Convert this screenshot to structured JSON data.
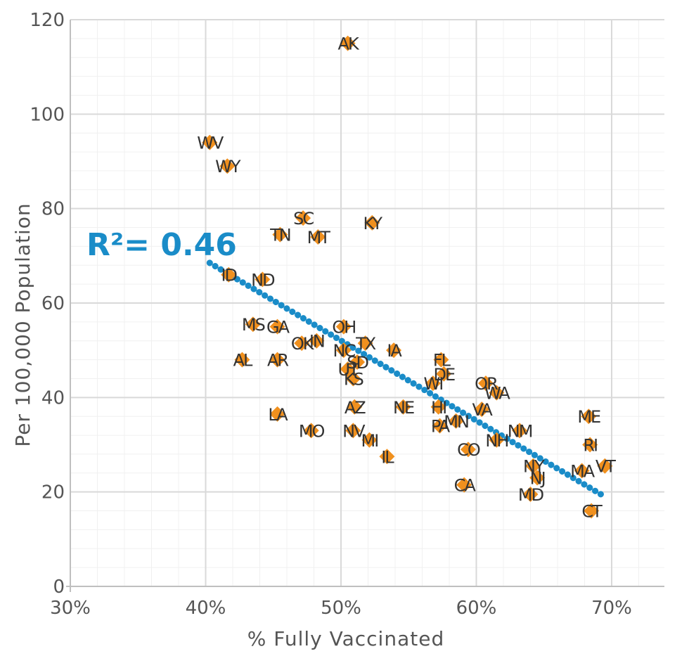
{
  "chart_data": {
    "type": "scatter",
    "xlabel": "% Fully Vaccinated",
    "ylabel": "Per 100,000 Population",
    "xlim": [
      30,
      72
    ],
    "ylim": [
      0,
      120
    ],
    "x_ticks": [
      30,
      40,
      50,
      60,
      70
    ],
    "x_tick_labels": [
      "30%",
      "40%",
      "50%",
      "60%",
      "70%"
    ],
    "y_ticks": [
      0,
      20,
      40,
      60,
      80,
      100,
      120
    ],
    "y_tick_labels": [
      "0",
      "20",
      "40",
      "60",
      "80",
      "100",
      "120"
    ],
    "grid": true,
    "annotation": "R²= 0.46",
    "trendline": {
      "x": [
        40.3,
        69.5
      ],
      "y": [
        68.5,
        19.0
      ]
    },
    "points": [
      {
        "label": "AK",
        "x": 50.5,
        "y": 115
      },
      {
        "label": "WV",
        "x": 40.3,
        "y": 94
      },
      {
        "label": "WY",
        "x": 41.6,
        "y": 89
      },
      {
        "label": "SC",
        "x": 47.2,
        "y": 78
      },
      {
        "label": "KY",
        "x": 52.3,
        "y": 77
      },
      {
        "label": "TN",
        "x": 45.5,
        "y": 74.5
      },
      {
        "label": "MT",
        "x": 48.3,
        "y": 74
      },
      {
        "label": "ID",
        "x": 41.7,
        "y": 66
      },
      {
        "label": "ND",
        "x": 44.2,
        "y": 65
      },
      {
        "label": "OH",
        "x": 50.2,
        "y": 55
      },
      {
        "label": "MS",
        "x": 43.5,
        "y": 55.5
      },
      {
        "label": "GA",
        "x": 45.3,
        "y": 55
      },
      {
        "label": "IN",
        "x": 48.2,
        "y": 52
      },
      {
        "label": "TX",
        "x": 51.8,
        "y": 51.5
      },
      {
        "label": "OK",
        "x": 47.1,
        "y": 51.5
      },
      {
        "label": "NC",
        "x": 50.2,
        "y": 50
      },
      {
        "label": "IA",
        "x": 53.9,
        "y": 50
      },
      {
        "label": "FL",
        "x": 57.4,
        "y": 48
      },
      {
        "label": "AL",
        "x": 42.7,
        "y": 48
      },
      {
        "label": "AR",
        "x": 45.3,
        "y": 48
      },
      {
        "label": "SD",
        "x": 51.2,
        "y": 47.5
      },
      {
        "label": "UT",
        "x": 50.5,
        "y": 46
      },
      {
        "label": "DE",
        "x": 57.6,
        "y": 45
      },
      {
        "label": "WI",
        "x": 56.8,
        "y": 43
      },
      {
        "label": "OR",
        "x": 60.7,
        "y": 43
      },
      {
        "label": "KS",
        "x": 50.9,
        "y": 44
      },
      {
        "label": "WA",
        "x": 61.5,
        "y": 41
      },
      {
        "label": "VA",
        "x": 60.4,
        "y": 37.5
      },
      {
        "label": "HI",
        "x": 57.2,
        "y": 38
      },
      {
        "label": "NE",
        "x": 54.6,
        "y": 38
      },
      {
        "label": "AZ",
        "x": 51.0,
        "y": 38
      },
      {
        "label": "LA",
        "x": 45.3,
        "y": 36.5
      },
      {
        "label": "ME",
        "x": 68.3,
        "y": 36
      },
      {
        "label": "MN",
        "x": 58.5,
        "y": 35
      },
      {
        "label": "PA",
        "x": 57.3,
        "y": 34
      },
      {
        "label": "NM",
        "x": 63.2,
        "y": 33
      },
      {
        "label": "MO",
        "x": 47.8,
        "y": 33
      },
      {
        "label": "NV",
        "x": 50.9,
        "y": 33
      },
      {
        "label": "NH",
        "x": 61.5,
        "y": 31
      },
      {
        "label": "MI",
        "x": 52.1,
        "y": 31
      },
      {
        "label": "RI",
        "x": 68.4,
        "y": 30
      },
      {
        "label": "CO",
        "x": 59.4,
        "y": 29
      },
      {
        "label": "IL",
        "x": 53.4,
        "y": 27.5
      },
      {
        "label": "VT",
        "x": 69.5,
        "y": 25.5
      },
      {
        "label": "NY",
        "x": 64.2,
        "y": 25.5
      },
      {
        "label": "MA",
        "x": 67.8,
        "y": 24.5
      },
      {
        "label": "NJ",
        "x": 64.5,
        "y": 23
      },
      {
        "label": "CA",
        "x": 59.1,
        "y": 21.5
      },
      {
        "label": "MD",
        "x": 64.0,
        "y": 19.5
      },
      {
        "label": "CT",
        "x": 68.5,
        "y": 16
      }
    ]
  }
}
